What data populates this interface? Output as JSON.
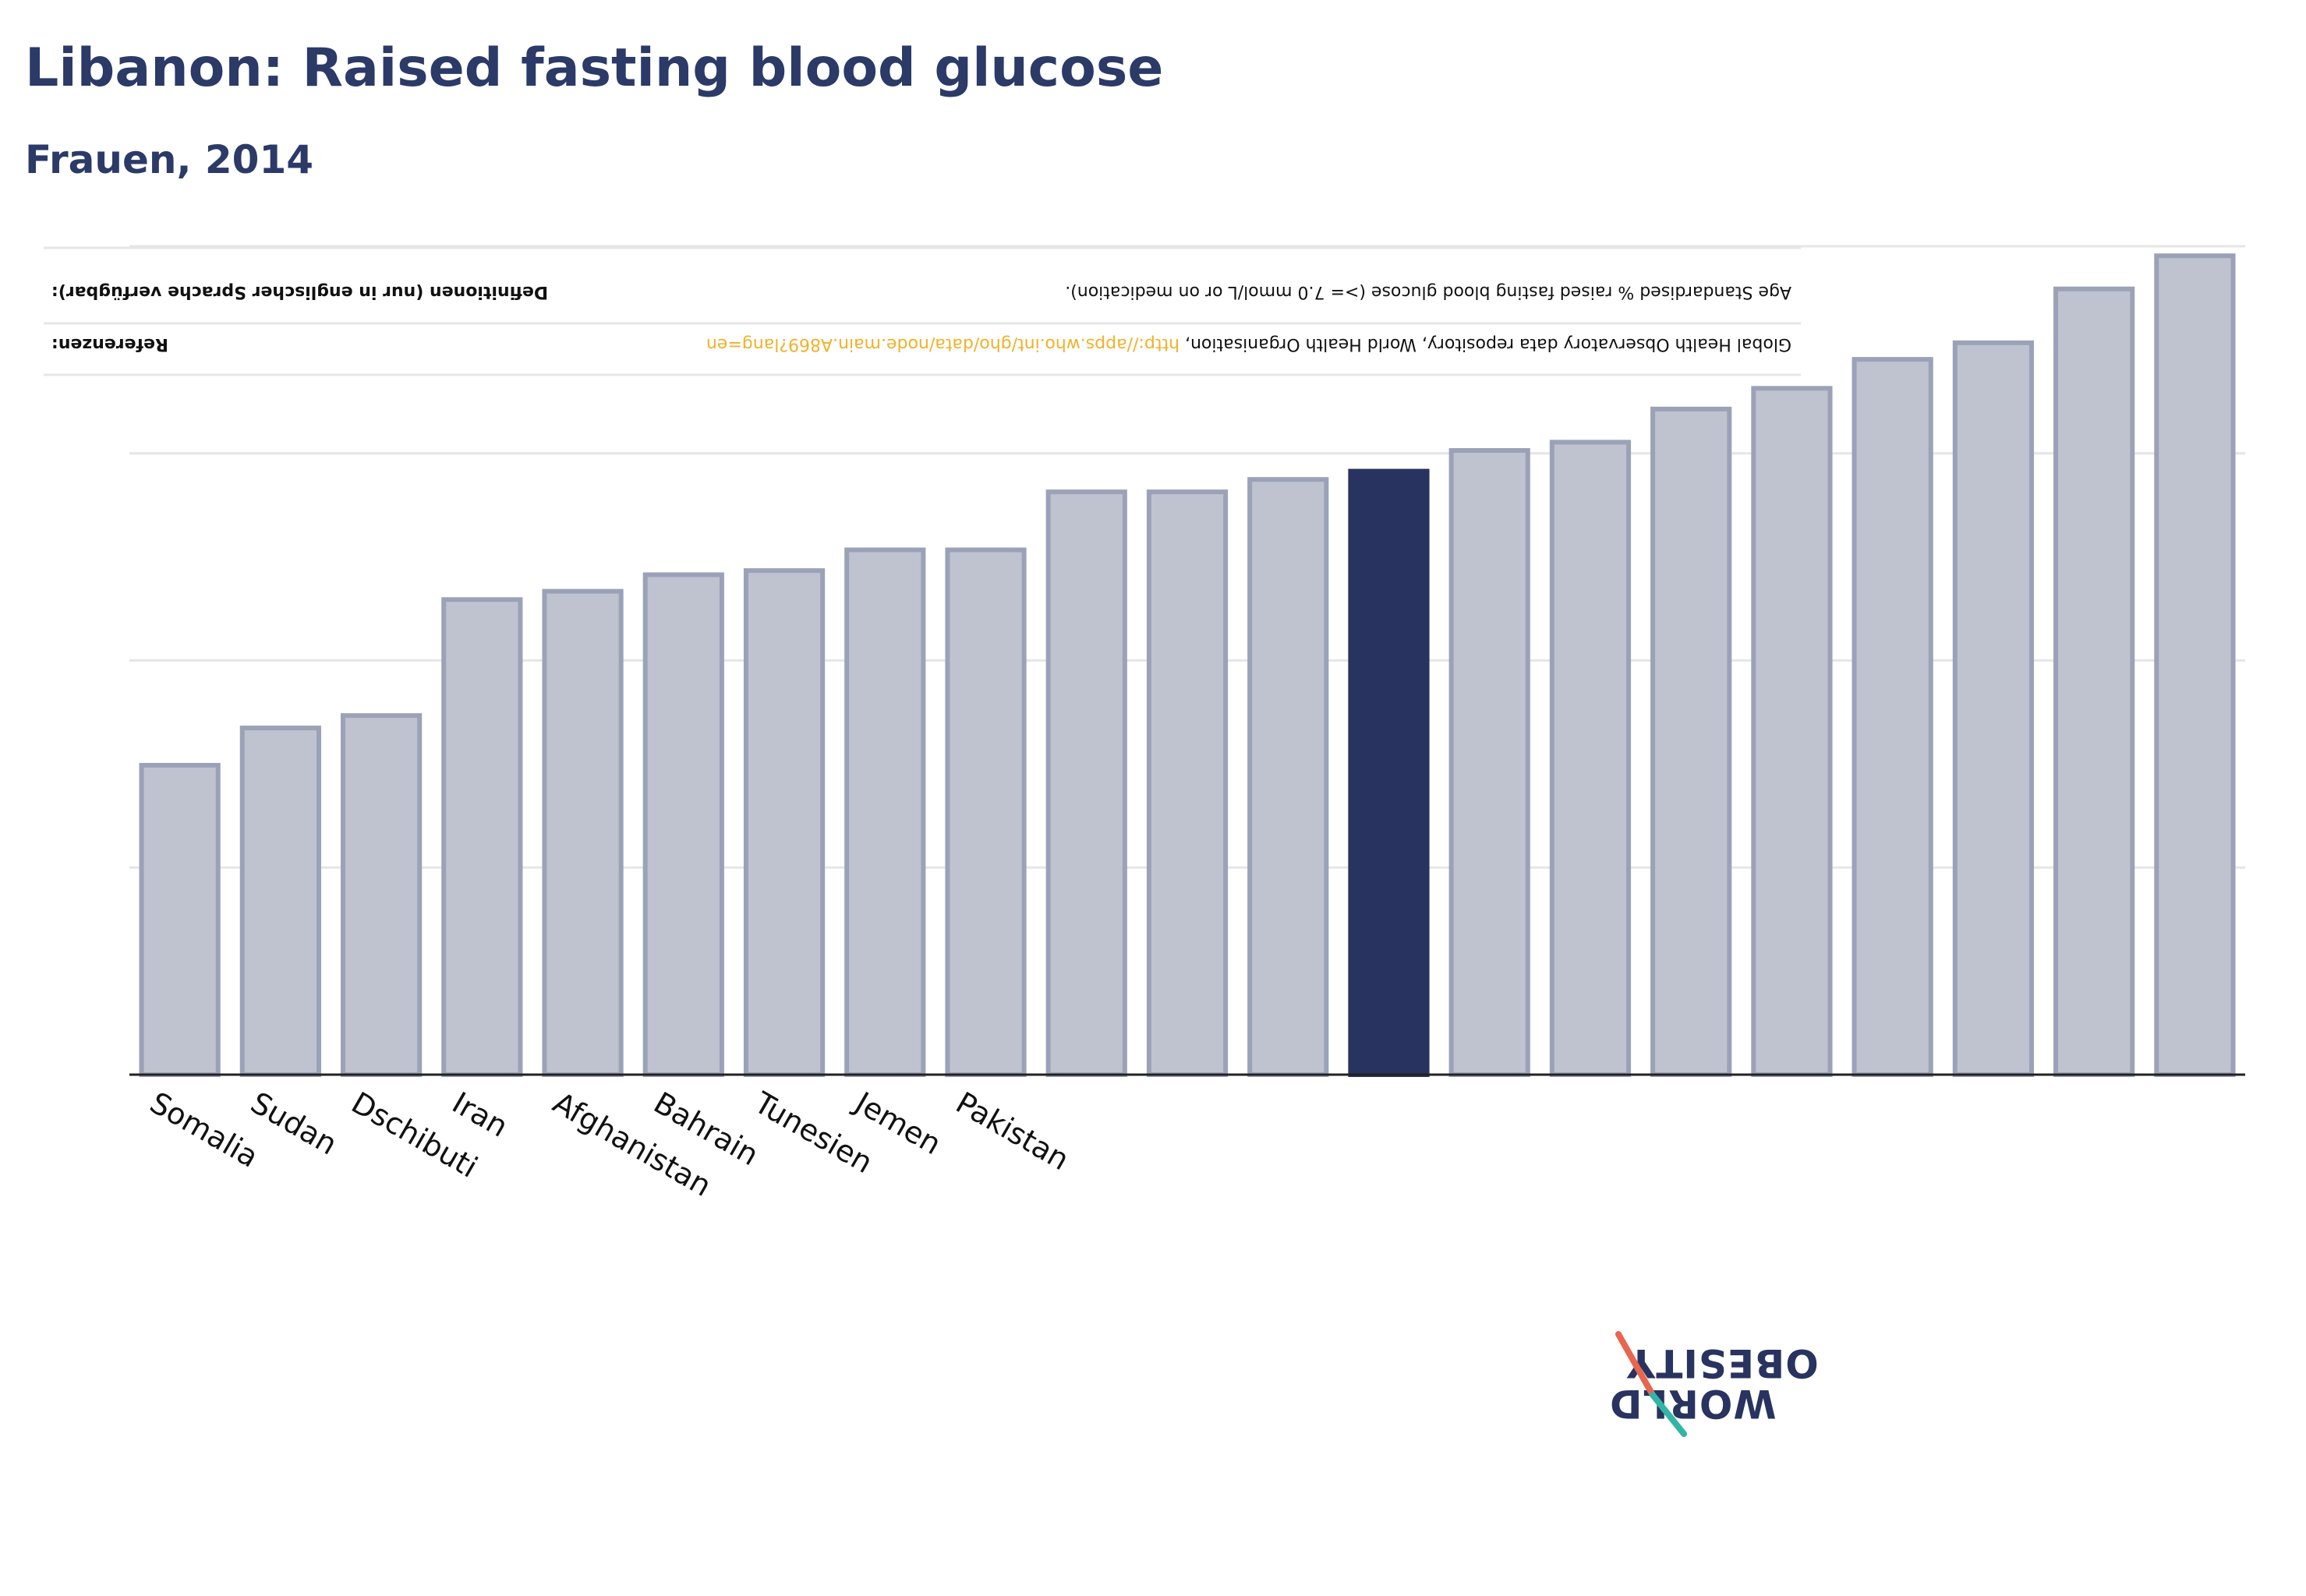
{
  "title": "Libanon: Raised fasting blood glucose",
  "subtitle": "Frauen, 2014",
  "colors": {
    "highlight": "#29335f",
    "bar_fill": "#bfc3cf",
    "bar_stroke": "#9ba2b8",
    "link": "#f0b22a",
    "title": "#2b3a67"
  },
  "footnote": {
    "definitions_label": "Definitionen (nur in englischer Sprache verfügbar):",
    "definitions_text": "Age Standardised % raised fasting blood glucose (>= 7.0 mmol/L or on medication).",
    "references_label": "Referenzen:",
    "references_text": "Global Health Observatory data repository, World Health Organisation,",
    "references_link": "http://apps.who.int/gho/data/node.main.A869?lang=en"
  },
  "logo": {
    "line1": "OBESITY",
    "line2": "WORLD"
  },
  "chart_data": {
    "type": "bar",
    "categories": [
      "Somalia",
      "Sudan",
      "Dschibuti",
      "Iran",
      "Afghanistan",
      "Bahrain",
      "Tunesien",
      "Jemen",
      "Pakistan",
      "",
      "",
      "",
      "",
      "",
      "",
      "",
      "",
      "",
      "",
      "",
      ""
    ],
    "values": [
      7.47,
      8.37,
      8.67,
      11.47,
      11.67,
      12.07,
      12.17,
      12.67,
      12.67,
      14.07,
      14.07,
      14.37,
      14.57,
      15.07,
      15.27,
      16.07,
      16.57,
      17.27,
      17.67,
      18.97,
      19.77
    ],
    "highlight_index": 12,
    "ylim": [
      0,
      20
    ],
    "grid": true,
    "xlabel": "",
    "ylabel": ""
  }
}
